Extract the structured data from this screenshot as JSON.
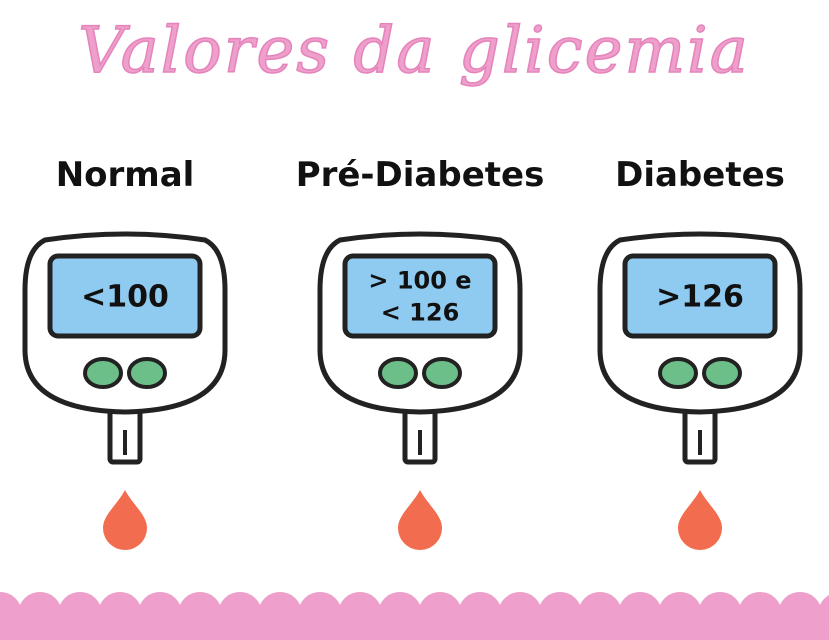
{
  "title": "Valores da glicemia",
  "items": [
    {
      "label": "Normal",
      "screen": [
        "<100"
      ]
    },
    {
      "label": "Pré-Diabetes",
      "screen": [
        "> 100 e",
        "< 126"
      ]
    },
    {
      "label": "Diabetes",
      "screen": [
        ">126"
      ]
    }
  ]
}
